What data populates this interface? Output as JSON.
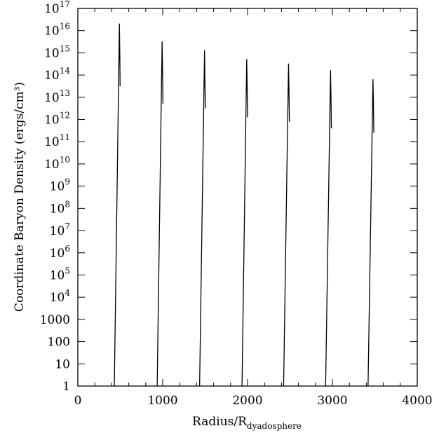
{
  "chart_data": {
    "type": "line",
    "xlabel": {
      "main": "Radius/R",
      "sub": "dyadosphere"
    },
    "ylabel": "Coordinate Baryon Density (ergs/cm³)",
    "xlim": [
      0,
      4000
    ],
    "ylim_log10": [
      0,
      17
    ],
    "yscale": "log",
    "x_ticks": [
      {
        "value": 0,
        "label": "0"
      },
      {
        "value": 1000,
        "label": "1000"
      },
      {
        "value": 2000,
        "label": "2000"
      },
      {
        "value": 3000,
        "label": "3000"
      },
      {
        "value": 4000,
        "label": "4000"
      }
    ],
    "y_ticks": [
      {
        "exp": 0,
        "label": "1"
      },
      {
        "exp": 1,
        "label": "10"
      },
      {
        "exp": 2,
        "label": "100"
      },
      {
        "exp": 3,
        "label": "1000"
      },
      {
        "exp": 4,
        "label": "10",
        "sup": "4"
      },
      {
        "exp": 5,
        "label": "10",
        "sup": "5"
      },
      {
        "exp": 6,
        "label": "10",
        "sup": "6"
      },
      {
        "exp": 7,
        "label": "10",
        "sup": "7"
      },
      {
        "exp": 8,
        "label": "10",
        "sup": "8"
      },
      {
        "exp": 9,
        "label": "10",
        "sup": "9"
      },
      {
        "exp": 10,
        "label": "10",
        "sup": "10"
      },
      {
        "exp": 11,
        "label": "10",
        "sup": "11"
      },
      {
        "exp": 12,
        "label": "10",
        "sup": "12"
      },
      {
        "exp": 13,
        "label": "10",
        "sup": "13"
      },
      {
        "exp": 14,
        "label": "10",
        "sup": "14"
      },
      {
        "exp": 15,
        "label": "10",
        "sup": "15"
      },
      {
        "exp": 16,
        "label": "10",
        "sup": "16"
      },
      {
        "exp": 17,
        "label": "10",
        "sup": "17"
      }
    ],
    "series": [
      {
        "points": [
          [
            430,
            0
          ],
          [
            490,
            16.3
          ],
          [
            495,
            14.8
          ],
          [
            498,
            13.5
          ]
        ]
      },
      {
        "points": [
          [
            935,
            0
          ],
          [
            993,
            15.5
          ],
          [
            998,
            14.3
          ],
          [
            1003,
            12.7
          ]
        ]
      },
      {
        "points": [
          [
            1435,
            0
          ],
          [
            1493,
            15.1
          ],
          [
            1497,
            13.9
          ],
          [
            1503,
            12.5
          ]
        ]
      },
      {
        "points": [
          [
            1935,
            0
          ],
          [
            1990,
            14.7
          ],
          [
            1995,
            13.6
          ],
          [
            2000,
            12.1
          ]
        ]
      },
      {
        "points": [
          [
            2425,
            0
          ],
          [
            2483,
            14.5
          ],
          [
            2488,
            13.4
          ],
          [
            2493,
            11.9
          ]
        ]
      },
      {
        "points": [
          [
            2920,
            0
          ],
          [
            2978,
            14.2
          ],
          [
            2983,
            13.1
          ],
          [
            2988,
            11.6
          ]
        ]
      },
      {
        "points": [
          [
            3420,
            0
          ],
          [
            3478,
            13.8
          ],
          [
            3483,
            12.9
          ],
          [
            3488,
            11.4
          ]
        ]
      }
    ]
  }
}
